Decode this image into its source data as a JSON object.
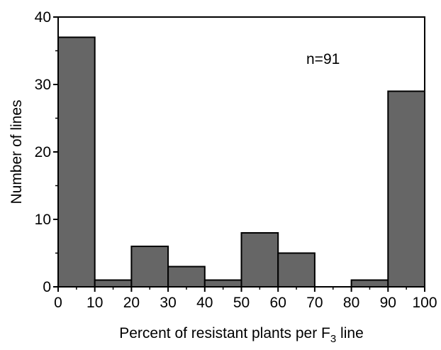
{
  "chart_data": {
    "type": "bar",
    "subtype": "histogram",
    "bins": [
      {
        "start": 0,
        "end": 10,
        "value": 37
      },
      {
        "start": 10,
        "end": 20,
        "value": 1
      },
      {
        "start": 20,
        "end": 30,
        "value": 6
      },
      {
        "start": 30,
        "end": 40,
        "value": 3
      },
      {
        "start": 40,
        "end": 50,
        "value": 1
      },
      {
        "start": 50,
        "end": 60,
        "value": 8
      },
      {
        "start": 60,
        "end": 70,
        "value": 5
      },
      {
        "start": 70,
        "end": 80,
        "value": 0
      },
      {
        "start": 80,
        "end": 90,
        "value": 1
      },
      {
        "start": 90,
        "end": 100,
        "value": 29
      }
    ],
    "xlabel": {
      "main": "Percent of resistant plants per F",
      "subscript": "3",
      "suffix": " line"
    },
    "ylabel": "Number of lines",
    "xlim": [
      0,
      100
    ],
    "ylim": [
      0,
      40
    ],
    "xticks": [
      "0",
      "10",
      "20",
      "30",
      "40",
      "50",
      "60",
      "70",
      "80",
      "90",
      "100"
    ],
    "yticks": [
      "0",
      "10",
      "20",
      "30",
      "40"
    ],
    "annotation": "n=91",
    "grid": false,
    "colors": {
      "bar_fill": "#666666",
      "bar_edge": "#000000",
      "axis": "#000000"
    }
  }
}
